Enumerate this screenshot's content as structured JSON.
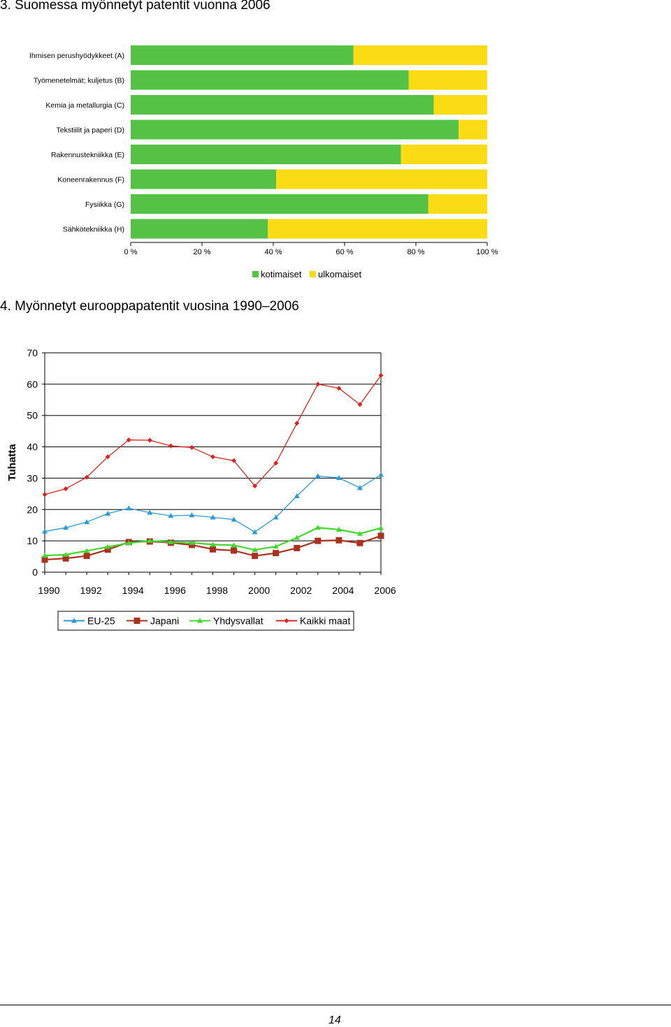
{
  "sections": [
    {
      "heading": "3. Suomessa myönnetyt patentit vuonna 2006"
    },
    {
      "heading": "4. Myönnetyt eurooppapatentit vuosina 1990–2006"
    }
  ],
  "chart_data": [
    {
      "type": "bar",
      "orientation": "horizontal",
      "stacked_percent": true,
      "categories": [
        "Ihmisen perushyödykkeet (A)",
        "Työmenetelmät; kuljetus (B)",
        "Kemia ja metallurgia (C)",
        "Tekstiilit ja paperi (D)",
        "Rakennustekniikka (E)",
        "Koneenrakennus (F)",
        "Fysiikka (G)",
        "Sähkötekniikka (H)"
      ],
      "series": [
        {
          "name": "kotimaiset",
          "color": "#55c245",
          "values": [
            62.5,
            78,
            85,
            92,
            75.8,
            40.8,
            83.5,
            38.5
          ]
        },
        {
          "name": "ulkomaiset",
          "color": "#fbdc14",
          "values": [
            37.5,
            22,
            15,
            8,
            24.2,
            59.2,
            16.5,
            61.5
          ]
        }
      ],
      "x_ticks": [
        "0 %",
        "20 %",
        "40 %",
        "60 %",
        "80 %",
        "100 %"
      ],
      "xlim": [
        0,
        100
      ],
      "legend_position": "bottom"
    },
    {
      "type": "line",
      "x": [
        1990,
        1991,
        1992,
        1993,
        1994,
        1995,
        1996,
        1997,
        1998,
        1999,
        2000,
        2001,
        2002,
        2003,
        2004,
        2005,
        2006
      ],
      "x_ticks": [
        "1990",
        "1992",
        "1994",
        "1996",
        "1998",
        "2000",
        "2002",
        "2004",
        "2006"
      ],
      "y_ticks": [
        "0",
        "10",
        "20",
        "30",
        "40",
        "50",
        "60",
        "70"
      ],
      "ylim": [
        0,
        70
      ],
      "ylabel": "Tuhatta",
      "grid": "horizontal",
      "legend_position": "bottom",
      "series": [
        {
          "name": "EU-25",
          "color": "#2e9ad4",
          "marker": "triangle",
          "values": [
            13,
            14.2,
            16,
            18.7,
            20.4,
            19,
            18,
            18.2,
            17.5,
            16.8,
            12.8,
            17.5,
            24.3,
            30.7,
            30.1,
            26.9,
            31.1
          ]
        },
        {
          "name": "Japani",
          "color": "#a8321f",
          "marker": "square",
          "values": [
            4,
            4.4,
            5.2,
            7.2,
            9.6,
            9.8,
            9.4,
            8.7,
            7.3,
            6.9,
            5.2,
            6.1,
            7.7,
            10,
            10.2,
            9.3,
            11.6
          ]
        },
        {
          "name": "Yhdysvallat",
          "color": "#42d82c",
          "marker": "triangle",
          "values": [
            5.3,
            5.6,
            6.8,
            8.1,
            9.3,
            10,
            9.6,
            9.4,
            8.8,
            8.6,
            7.1,
            8.2,
            11,
            14.2,
            13.6,
            12.3,
            14.1
          ]
        },
        {
          "name": "Kaikki maat",
          "color": "#d8251f",
          "marker": "diamond",
          "values": [
            24.8,
            26.6,
            30.3,
            36.8,
            42.2,
            42.1,
            40.3,
            39.8,
            36.8,
            35.6,
            27.5,
            34.8,
            47.5,
            60,
            58.7,
            53.5,
            62.8
          ]
        }
      ]
    }
  ],
  "footer": {
    "page_number": "14"
  }
}
